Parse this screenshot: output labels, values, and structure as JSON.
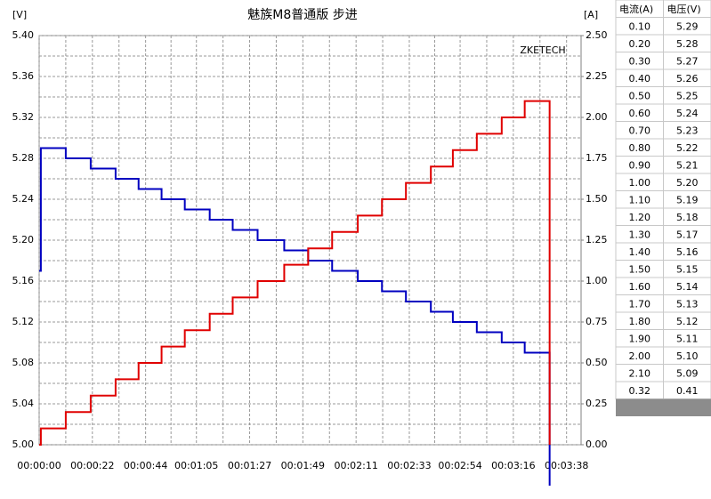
{
  "chart_data": {
    "type": "line",
    "title": "魅族M8普通版 步进",
    "y_label": "[V]",
    "y2_label": "[A]",
    "watermark": "ZKETECH",
    "step": true,
    "grid": true,
    "xlim": [
      0,
      224
    ],
    "ylim": [
      5.0,
      5.4
    ],
    "y2lim": [
      0,
      2.5
    ],
    "xticks": [
      {
        "value": 0,
        "label": "00:00:00"
      },
      {
        "value": 22,
        "label": "00:00:22"
      },
      {
        "value": 44,
        "label": "00:00:44"
      },
      {
        "value": 65,
        "label": "00:01:05"
      },
      {
        "value": 87,
        "label": "00:01:27"
      },
      {
        "value": 109,
        "label": "00:01:49"
      },
      {
        "value": 131,
        "label": "00:02:11"
      },
      {
        "value": 153,
        "label": "00:02:33"
      },
      {
        "value": 174,
        "label": "00:02:54"
      },
      {
        "value": 196,
        "label": "00:03:16"
      },
      {
        "value": 218,
        "label": "00:03:38"
      }
    ],
    "yticks": [
      {
        "value": 5.0,
        "label": "5.00"
      },
      {
        "value": 5.04,
        "label": "5.04"
      },
      {
        "value": 5.08,
        "label": "5.08"
      },
      {
        "value": 5.12,
        "label": "5.12"
      },
      {
        "value": 5.16,
        "label": "5.16"
      },
      {
        "value": 5.2,
        "label": "5.20"
      },
      {
        "value": 5.24,
        "label": "5.24"
      },
      {
        "value": 5.28,
        "label": "5.28"
      },
      {
        "value": 5.32,
        "label": "5.32"
      },
      {
        "value": 5.36,
        "label": "5.36"
      },
      {
        "value": 5.4,
        "label": "5.40"
      }
    ],
    "y2ticks": [
      {
        "value": 0,
        "label": "0.00"
      },
      {
        "value": 0.25,
        "label": "0.25"
      },
      {
        "value": 0.5,
        "label": "0.50"
      },
      {
        "value": 0.75,
        "label": "0.75"
      },
      {
        "value": 1.0,
        "label": "1.00"
      },
      {
        "value": 1.25,
        "label": "1.25"
      },
      {
        "value": 1.5,
        "label": "1.50"
      },
      {
        "value": 1.75,
        "label": "1.75"
      },
      {
        "value": 2.0,
        "label": "2.00"
      },
      {
        "value": 2.25,
        "label": "2.25"
      },
      {
        "value": 2.5,
        "label": "2.50"
      }
    ],
    "x": [
      0,
      0.7,
      11,
      21.3,
      31.6,
      41.1,
      50.6,
      60.2,
      70.5,
      80,
      90.3,
      101.3,
      111.2,
      121.1,
      131.7,
      141.7,
      151.6,
      161.9,
      171,
      180.9,
      191.2,
      200.7,
      211
    ],
    "series": [
      {
        "name": "电压",
        "color": "#0000c0",
        "axis": "y",
        "values": [
          5.17,
          5.29,
          5.28,
          5.27,
          5.26,
          5.25,
          5.24,
          5.23,
          5.22,
          5.21,
          5.2,
          5.19,
          5.18,
          5.17,
          5.16,
          5.15,
          5.14,
          5.13,
          5.12,
          5.11,
          5.1,
          5.09,
          4.96
        ]
      },
      {
        "name": "电流",
        "color": "#e00000",
        "axis": "y2",
        "values": [
          0,
          0.1,
          0.2,
          0.3,
          0.4,
          0.5,
          0.6,
          0.7,
          0.8,
          0.9,
          1.0,
          1.1,
          1.2,
          1.3,
          1.4,
          1.5,
          1.6,
          1.7,
          1.8,
          1.9,
          2.0,
          2.1,
          0
        ]
      }
    ]
  },
  "table": {
    "header": [
      "电流(A)",
      "电压(V)"
    ],
    "rows": [
      [
        "0.10",
        "5.29"
      ],
      [
        "0.20",
        "5.28"
      ],
      [
        "0.30",
        "5.27"
      ],
      [
        "0.40",
        "5.26"
      ],
      [
        "0.50",
        "5.25"
      ],
      [
        "0.60",
        "5.24"
      ],
      [
        "0.70",
        "5.23"
      ],
      [
        "0.80",
        "5.22"
      ],
      [
        "0.90",
        "5.21"
      ],
      [
        "1.00",
        "5.20"
      ],
      [
        "1.10",
        "5.19"
      ],
      [
        "1.20",
        "5.18"
      ],
      [
        "1.30",
        "5.17"
      ],
      [
        "1.40",
        "5.16"
      ],
      [
        "1.50",
        "5.15"
      ],
      [
        "1.60",
        "5.14"
      ],
      [
        "1.70",
        "5.13"
      ],
      [
        "1.80",
        "5.12"
      ],
      [
        "1.90",
        "5.11"
      ],
      [
        "2.00",
        "5.10"
      ],
      [
        "2.10",
        "5.09"
      ],
      [
        "0.32",
        "0.41"
      ]
    ]
  }
}
